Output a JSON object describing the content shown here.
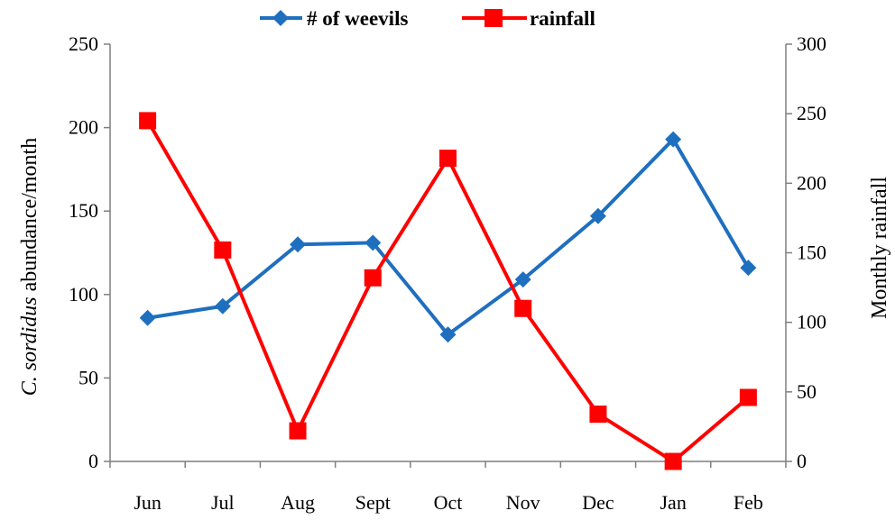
{
  "chart_data": {
    "type": "line",
    "categories": [
      "Jun",
      "Jul",
      "Aug",
      "Sept",
      "Oct",
      "Nov",
      "Dec",
      "Jan",
      "Feb"
    ],
    "series": [
      {
        "name": "# of weevils",
        "axis": "left",
        "color": "#1f6fbf",
        "marker": "diamond",
        "values": [
          86,
          93,
          130,
          131,
          76,
          109,
          147,
          193,
          116
        ]
      },
      {
        "name": "rainfall",
        "axis": "right",
        "color": "#ff0000",
        "marker": "square",
        "values": [
          245,
          152,
          22,
          132,
          218,
          110,
          34,
          0,
          46
        ]
      }
    ],
    "ylabel_italic": "C. sordidus",
    "ylabel_rest": " abundance/month",
    "y2label": "Monthly rainfall",
    "ylim": [
      0,
      250
    ],
    "y2lim": [
      0,
      300
    ],
    "yticks": [
      0,
      50,
      100,
      150,
      200,
      250
    ],
    "y2ticks": [
      0,
      50,
      100,
      150,
      200,
      250,
      300
    ],
    "legend_position": "top",
    "grid": false
  }
}
